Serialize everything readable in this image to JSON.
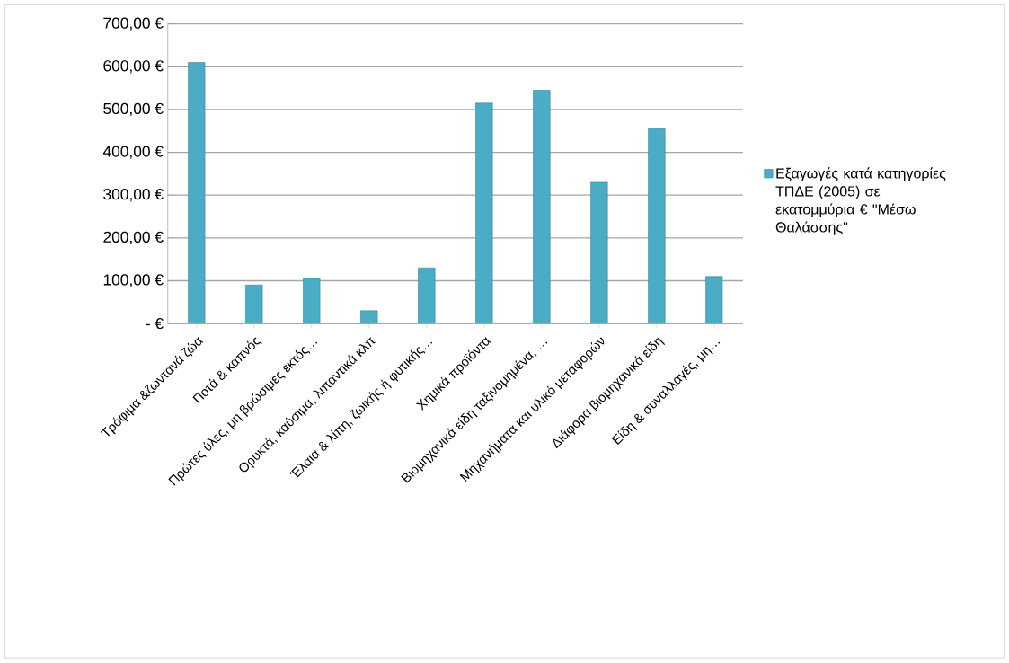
{
  "chart_data": {
    "type": "bar",
    "categories": [
      "Τρόφιμα &ζωντανά ζώα",
      "Ποτά & καπνός",
      "Πρώτες ύλες, μη βρώσιμες εκτός…",
      "Ορυκτά, καύσιμα, λιπαντικά κλπ",
      "Έλαια & λίπη, ζωικής ή φυτικής…",
      "Χημικά προϊόντα",
      "Βιομηχανικά είδη ταξινομημένα, …",
      "Μηχανήματα  και υλικό μεταφορών",
      "Διάφορα βιομηχανικά είδη",
      "Είδη & συναλλαγές,  μη…"
    ],
    "series": [
      {
        "name": "Εξαγωγές κατά κατηγορίες ΤΠΔΕ (2005) σε εκατομμύρια € \"Μέσω Θαλάσσης\"",
        "color": "#4bacc6",
        "values": [
          610,
          90,
          105,
          30,
          130,
          515,
          545,
          330,
          455,
          110
        ]
      }
    ],
    "ylim": [
      0,
      700
    ],
    "yticks": [
      {
        "value": 0,
        "label": "-   €"
      },
      {
        "value": 100,
        "label": "100,00 €"
      },
      {
        "value": 200,
        "label": "200,00 €"
      },
      {
        "value": 300,
        "label": "300,00 €"
      },
      {
        "value": 400,
        "label": "400,00 €"
      },
      {
        "value": 500,
        "label": "500,00 €"
      },
      {
        "value": 600,
        "label": "600,00 €"
      },
      {
        "value": 700,
        "label": "700,00 €"
      }
    ],
    "grid": "y",
    "legend": "right"
  }
}
